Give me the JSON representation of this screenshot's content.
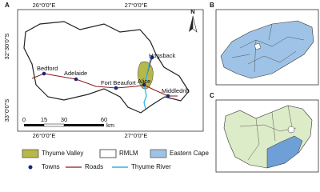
{
  "panels": {
    "a": "A",
    "b": "B",
    "c": "C"
  },
  "longitude_labels": {
    "top": [
      "26°0'0\"E",
      "27°0'0\"E"
    ],
    "bottom": [
      "26°0'0\"E",
      "27°0'0\"E"
    ]
  },
  "latitude_labels": [
    "32°30'0\"S",
    "33°0'0\"S"
  ],
  "north": "N",
  "towns": [
    "Hogsback",
    "Bedford",
    "Adelaide",
    "Fort Beaufort",
    "Alice",
    "Middledrift"
  ],
  "scale_bar": {
    "ticks": [
      0,
      15,
      30,
      60
    ],
    "unit": "km"
  },
  "legend": [
    "Thyume Valley",
    "RMLM",
    "Eastern Cape",
    "Towns",
    "Roads",
    "Thyume River"
  ]
}
